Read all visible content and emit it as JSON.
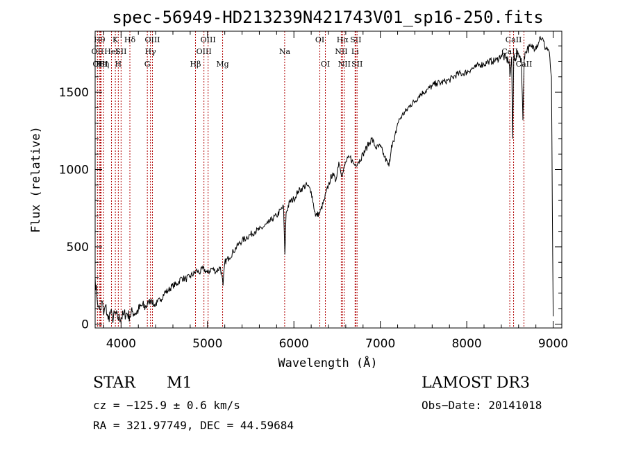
{
  "chart_data": {
    "type": "line",
    "title": "spec-56949-HD213239N421743V01_sp16-250.fits",
    "xlabel": "Wavelength (Å)",
    "ylabel": "Flux (relative)",
    "xlim": [
      3700,
      9100
    ],
    "ylim": [
      -25,
      1895
    ],
    "xticks": [
      4000,
      5000,
      6000,
      7000,
      8000,
      9000
    ],
    "yticks": [
      0,
      500,
      1000,
      1500
    ],
    "xtick_labels": [
      "4000",
      "5000",
      "6000",
      "7000",
      "8000",
      "9000"
    ],
    "ytick_labels": [
      "0",
      "500",
      "1000",
      "1500"
    ],
    "series": [
      {
        "name": "spectrum",
        "x": [
          3700,
          3720,
          3740,
          3760,
          3780,
          3800,
          3820,
          3850,
          3880,
          3900,
          3930,
          3960,
          4000,
          4030,
          4060,
          4100,
          4130,
          4160,
          4200,
          4240,
          4280,
          4320,
          4350,
          4380,
          4420,
          4460,
          4500,
          4550,
          4600,
          4650,
          4700,
          4750,
          4800,
          4850,
          4880,
          4900,
          4950,
          5000,
          5050,
          5100,
          5150,
          5180,
          5200,
          5250,
          5300,
          5350,
          5400,
          5450,
          5500,
          5550,
          5600,
          5650,
          5700,
          5750,
          5800,
          5850,
          5880,
          5895,
          5910,
          5950,
          6000,
          6050,
          6100,
          6150,
          6200,
          6250,
          6300,
          6350,
          6400,
          6450,
          6480,
          6520,
          6560,
          6600,
          6650,
          6700,
          6750,
          6800,
          6850,
          6900,
          6950,
          7000,
          7050,
          7100,
          7130,
          7160,
          7200,
          7250,
          7300,
          7350,
          7400,
          7450,
          7500,
          7550,
          7600,
          7650,
          7700,
          7750,
          7800,
          7850,
          7900,
          7950,
          8000,
          8050,
          8100,
          8150,
          8200,
          8250,
          8300,
          8350,
          8400,
          8450,
          8490,
          8500,
          8520,
          8530,
          8545,
          8560,
          8600,
          8630,
          8650,
          8665,
          8680,
          8700,
          8750,
          8800,
          8830,
          8850,
          8870,
          8900,
          8950,
          8980,
          8990,
          9000
        ],
        "y": [
          300,
          180,
          110,
          90,
          150,
          60,
          120,
          30,
          80,
          30,
          70,
          40,
          40,
          60,
          70,
          50,
          80,
          70,
          90,
          120,
          110,
          140,
          160,
          120,
          140,
          160,
          200,
          220,
          250,
          260,
          300,
          290,
          310,
          330,
          350,
          330,
          360,
          330,
          360,
          340,
          370,
          250,
          400,
          430,
          470,
          510,
          540,
          560,
          580,
          600,
          610,
          630,
          650,
          680,
          700,
          740,
          760,
          450,
          720,
          790,
          810,
          860,
          880,
          900,
          860,
          700,
          720,
          800,
          900,
          980,
          920,
          1050,
          960,
          1050,
          1080,
          1030,
          1050,
          1100,
          1150,
          1200,
          1140,
          1150,
          1080,
          1020,
          1160,
          1180,
          1300,
          1350,
          1380,
          1420,
          1440,
          1480,
          1500,
          1520,
          1540,
          1560,
          1560,
          1570,
          1580,
          1600,
          1620,
          1620,
          1630,
          1650,
          1660,
          1680,
          1680,
          1700,
          1700,
          1710,
          1740,
          1720,
          1700,
          1600,
          1730,
          1200,
          1740,
          1720,
          1750,
          1720,
          1320,
          1730,
          1760,
          1780,
          1790,
          1800,
          1820,
          1860,
          1850,
          1800,
          1770,
          1600,
          800,
          50
        ]
      }
    ],
    "lines": [
      {
        "x": 3750,
        "label": "Hθ",
        "row": 0
      },
      {
        "x": 3727,
        "label": "OII",
        "row": 1
      },
      {
        "x": 3760,
        "label": "OIII",
        "row": 2
      },
      {
        "x": 3770,
        "label": "Hε",
        "row": 2
      },
      {
        "x": 3798,
        "label": "Hη",
        "row": 2
      },
      {
        "x": 3889,
        "label": "HeI",
        "row": 1
      },
      {
        "x": 3934,
        "label": "K",
        "row": 0
      },
      {
        "x": 3968,
        "label": "H",
        "row": 2
      },
      {
        "x": 4000,
        "label": "SII",
        "row": 1
      },
      {
        "x": 4102,
        "label": "Hδ",
        "row": 0
      },
      {
        "x": 4304,
        "label": "G",
        "row": 2
      },
      {
        "x": 4340,
        "label": "Hγ",
        "row": 1
      },
      {
        "x": 4363,
        "label": "OIII",
        "row": 0
      },
      {
        "x": 4861,
        "label": "Hβ",
        "row": 2
      },
      {
        "x": 4959,
        "label": "OIII",
        "row": 1
      },
      {
        "x": 5007,
        "label": "OIII",
        "row": 0
      },
      {
        "x": 5175,
        "label": "Mg",
        "row": 2
      },
      {
        "x": 5893,
        "label": "Na",
        "row": 1
      },
      {
        "x": 6300,
        "label": "OI",
        "row": 0
      },
      {
        "x": 6364,
        "label": "OI",
        "row": 2
      },
      {
        "x": 6548,
        "label": "NII",
        "row": 1
      },
      {
        "x": 6563,
        "label": "Hα",
        "row": 0
      },
      {
        "x": 6583,
        "label": "NII",
        "row": 2
      },
      {
        "x": 6708,
        "label": "Li",
        "row": 1
      },
      {
        "x": 6716,
        "label": "SII",
        "row": 0
      },
      {
        "x": 6731,
        "label": "SII",
        "row": 2
      },
      {
        "x": 8498,
        "label": "CaII",
        "row": 1
      },
      {
        "x": 8542,
        "label": "CaII",
        "row": 0
      },
      {
        "x": 8662,
        "label": "CaII",
        "row": 2
      }
    ]
  },
  "info": {
    "class": "STAR",
    "subclass": "M1",
    "survey": "LAMOST DR3",
    "cz": "cz = −125.9 ± 0.6 km/s",
    "obs_date": "Obs−Date: 20141018",
    "radec": "RA = 321.97749, DEC =  44.59684"
  },
  "colors": {
    "line_marker": "#b00000",
    "spectrum": "#000000"
  }
}
